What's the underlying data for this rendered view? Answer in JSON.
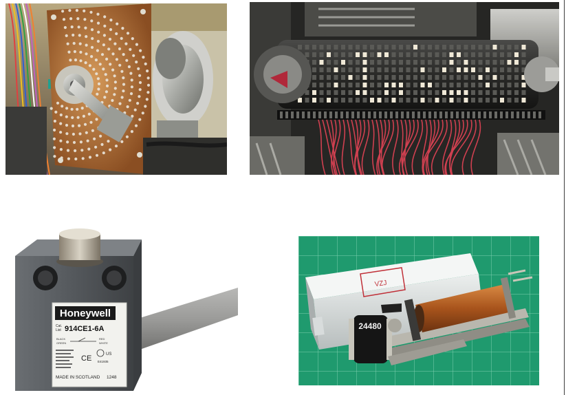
{
  "photos": [
    {
      "id": "stepping-switch-bank",
      "icon": "stepping-switch-photo"
    },
    {
      "id": "drum-sequencer",
      "icon": "drum-sequencer-photo"
    },
    {
      "id": "limit-switch",
      "icon": "limit-switch-photo",
      "label": {
        "brand": "Honeywell",
        "cat_prefix": "Cat.",
        "list_prefix": "List",
        "model": "914CE1-6A",
        "wire_labels": [
          "BLACK",
          "GREEN",
          "RED",
          "WHITE"
        ],
        "certs": "CE",
        "cert_right": "US",
        "cert_number": "E41935",
        "origin": "MADE IN SCOTLAND",
        "date_code": "1248"
      }
    },
    {
      "id": "counter-relay",
      "icon": "counter-relay-photo",
      "counter_digits": "24480",
      "stamp_text": "VZJ"
    }
  ],
  "colors": {
    "cutting_mat": "#1f9a6e",
    "grid": "#7fd0b0",
    "copper_board": "#b8733a",
    "wire_red": "#d04050",
    "switch_body": "#505458",
    "cable": "#9a9a98"
  }
}
